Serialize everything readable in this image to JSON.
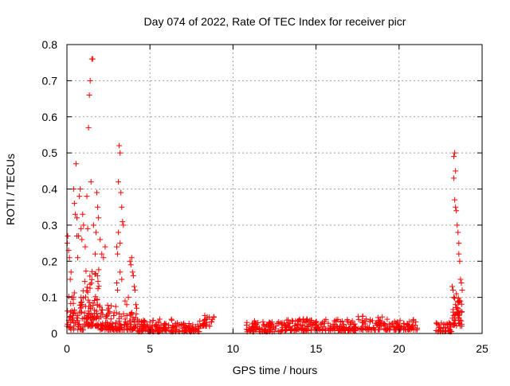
{
  "chart_data": {
    "type": "scatter",
    "title": "Day 074 of 2022, Rate Of TEC Index for receiver picr",
    "xlabel": "GPS time / hours",
    "ylabel": "ROTI / TECUs",
    "xlim": [
      0,
      25
    ],
    "ylim": [
      0,
      0.8
    ],
    "xticks": [
      0,
      5,
      10,
      15,
      20,
      25
    ],
    "yticks": [
      0,
      0.1,
      0.2,
      0.3,
      0.4,
      0.5,
      0.6,
      0.7,
      0.8
    ],
    "grid": true,
    "marker": "+",
    "series": [
      {
        "name": "ROTI",
        "color": "#ff0000",
        "points": [
          [
            0.02,
            0.25
          ],
          [
            0.05,
            0.27
          ],
          [
            0.1,
            0.23
          ],
          [
            0.15,
            0.21
          ],
          [
            0.2,
            0.15
          ],
          [
            0.25,
            0.17
          ],
          [
            0.3,
            0.1
          ],
          [
            0.35,
            0.05
          ],
          [
            0.4,
            0.4
          ],
          [
            0.45,
            0.36
          ],
          [
            0.5,
            0.33
          ],
          [
            0.55,
            0.47
          ],
          [
            0.6,
            0.27
          ],
          [
            0.6,
            0.32
          ],
          [
            0.65,
            0.21
          ],
          [
            0.7,
            0.27
          ],
          [
            0.75,
            0.38
          ],
          [
            0.8,
            0.4
          ],
          [
            0.85,
            0.29
          ],
          [
            0.9,
            0.26
          ],
          [
            0.95,
            0.33
          ],
          [
            1.0,
            0.3
          ],
          [
            1.1,
            0.24
          ],
          [
            1.2,
            0.38
          ],
          [
            1.25,
            0.29
          ],
          [
            1.3,
            0.57
          ],
          [
            1.35,
            0.66
          ],
          [
            1.4,
            0.7
          ],
          [
            1.45,
            0.42
          ],
          [
            1.5,
            0.76
          ],
          [
            1.55,
            0.76
          ],
          [
            1.6,
            0.3
          ],
          [
            1.7,
            0.22
          ],
          [
            1.75,
            0.28
          ],
          [
            1.8,
            0.39
          ],
          [
            1.85,
            0.35
          ],
          [
            1.9,
            0.32
          ],
          [
            2.0,
            0.26
          ],
          [
            2.1,
            0.22
          ],
          [
            2.2,
            0.21
          ],
          [
            2.3,
            0.24
          ],
          [
            3.0,
            0.24
          ],
          [
            3.05,
            0.22
          ],
          [
            3.1,
            0.42
          ],
          [
            3.15,
            0.52
          ],
          [
            3.2,
            0.5
          ],
          [
            3.25,
            0.39
          ],
          [
            3.3,
            0.35
          ],
          [
            3.35,
            0.31
          ],
          [
            3.4,
            0.3
          ],
          [
            3.1,
            0.28
          ],
          [
            3.2,
            0.25
          ],
          [
            3.0,
            0.14
          ],
          [
            3.05,
            0.12
          ],
          [
            3.2,
            0.17
          ],
          [
            3.3,
            0.15
          ],
          [
            3.5,
            0.09
          ],
          [
            3.6,
            0.08
          ],
          [
            3.7,
            0.1
          ],
          [
            3.8,
            0.2
          ],
          [
            3.85,
            0.19
          ],
          [
            3.9,
            0.21
          ],
          [
            3.95,
            0.17
          ],
          [
            4.0,
            0.16
          ],
          [
            4.05,
            0.13
          ],
          [
            4.1,
            0.12
          ],
          [
            4.15,
            0.08
          ],
          [
            4.2,
            0.07
          ],
          [
            23.3,
            0.49
          ],
          [
            23.35,
            0.5
          ],
          [
            23.4,
            0.45
          ],
          [
            23.3,
            0.43
          ],
          [
            23.35,
            0.37
          ],
          [
            23.4,
            0.35
          ],
          [
            23.45,
            0.34
          ],
          [
            23.5,
            0.3
          ],
          [
            23.55,
            0.28
          ],
          [
            23.6,
            0.25
          ],
          [
            23.6,
            0.22
          ],
          [
            23.65,
            0.2
          ],
          [
            23.7,
            0.15
          ],
          [
            23.75,
            0.14
          ],
          [
            23.8,
            0.12
          ],
          [
            23.2,
            0.13
          ],
          [
            23.25,
            0.12
          ],
          [
            23.4,
            0.08
          ],
          [
            23.5,
            0.06
          ],
          [
            23.6,
            0.05
          ],
          [
            23.3,
            0.1
          ],
          [
            23.45,
            0.11
          ],
          [
            23.7,
            0.09
          ],
          [
            23.55,
            0.07
          ]
        ],
        "dense_segments": [
          {
            "x_start": 0.0,
            "x_end": 1.0,
            "y_low": 0.01,
            "y_high": 0.12,
            "count": 60
          },
          {
            "x_start": 1.0,
            "x_end": 2.0,
            "y_low": 0.02,
            "y_high": 0.18,
            "count": 90
          },
          {
            "x_start": 2.0,
            "x_end": 3.0,
            "y_low": 0.01,
            "y_high": 0.08,
            "count": 70
          },
          {
            "x_start": 3.0,
            "x_end": 4.2,
            "y_low": 0.01,
            "y_high": 0.06,
            "count": 60
          },
          {
            "x_start": 4.2,
            "x_end": 6.5,
            "y_low": 0.005,
            "y_high": 0.04,
            "count": 110
          },
          {
            "x_start": 6.5,
            "x_end": 8.0,
            "y_low": 0.005,
            "y_high": 0.03,
            "count": 60
          },
          {
            "x_start": 8.0,
            "x_end": 8.9,
            "y_low": 0.02,
            "y_high": 0.05,
            "count": 30
          },
          {
            "x_start": 10.8,
            "x_end": 13.0,
            "y_low": 0.005,
            "y_high": 0.035,
            "count": 90
          },
          {
            "x_start": 13.0,
            "x_end": 15.0,
            "y_low": 0.008,
            "y_high": 0.04,
            "count": 90
          },
          {
            "x_start": 15.0,
            "x_end": 17.5,
            "y_low": 0.008,
            "y_high": 0.04,
            "count": 100
          },
          {
            "x_start": 17.5,
            "x_end": 19.0,
            "y_low": 0.01,
            "y_high": 0.05,
            "count": 60
          },
          {
            "x_start": 19.0,
            "x_end": 21.1,
            "y_low": 0.01,
            "y_high": 0.04,
            "count": 80
          },
          {
            "x_start": 22.2,
            "x_end": 23.2,
            "y_low": 0.005,
            "y_high": 0.03,
            "count": 40
          },
          {
            "x_start": 23.2,
            "x_end": 23.8,
            "y_low": 0.02,
            "y_high": 0.1,
            "count": 40
          }
        ]
      }
    ]
  }
}
